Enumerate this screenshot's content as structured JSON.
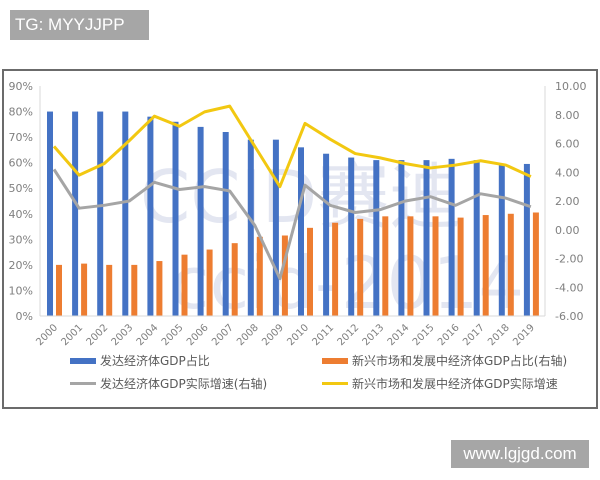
{
  "watermarks": {
    "top_left": "TG: MYYJJPP",
    "bottom_right": "www.lgjgd.com",
    "chart_background": "CCID赛迪 ccid-2014"
  },
  "colors": {
    "blue_bar": "#4472c4",
    "orange_bar": "#ed7d31",
    "gray_line": "#a5a5a5",
    "yellow_line": "#f2c811",
    "frame": "#6b6b6b",
    "axis_text": "#7f7f7f"
  },
  "legend": {
    "items": [
      {
        "label": "发达经济体GDP占比",
        "type": "bar",
        "color": "#4472c4"
      },
      {
        "label": "新兴市场和发展中经济体GDP占比(右轴)",
        "type": "bar",
        "color": "#ed7d31"
      },
      {
        "label": "发达经济体GDP实际增速(右轴)",
        "type": "line",
        "color": "#a5a5a5"
      },
      {
        "label": "新兴市场和发展中经济体GDP实际增速",
        "type": "line",
        "color": "#f2c811"
      }
    ]
  },
  "chart_data": {
    "type": "bar",
    "title": "",
    "xlabel": "",
    "ylabel": "",
    "categories": [
      "2000",
      "2001",
      "2002",
      "2003",
      "2004",
      "2005",
      "2006",
      "2007",
      "2008",
      "2009",
      "2010",
      "2011",
      "2012",
      "2013",
      "2014",
      "2015",
      "2016",
      "2017",
      "2018",
      "2019"
    ],
    "left_axis": {
      "ticks": [
        "0%",
        "10%",
        "20%",
        "30%",
        "40%",
        "50%",
        "60%",
        "70%",
        "80%",
        "90%"
      ],
      "ylim": [
        0,
        90
      ],
      "unit": "%"
    },
    "right_axis": {
      "ticks": [
        "-6.00",
        "-4.00",
        "-2.00",
        "0.00",
        "2.00",
        "4.00",
        "6.00",
        "8.00",
        "10.00"
      ],
      "ylim": [
        -6,
        10
      ]
    },
    "series": [
      {
        "name": "发达经济体GDP占比",
        "type": "bar",
        "axis": "left",
        "color": "#4472c4",
        "values": [
          80,
          80,
          80,
          80,
          78,
          76,
          74,
          72,
          69,
          69,
          66,
          63.5,
          62,
          61,
          61,
          61,
          61.5,
          61,
          59.5,
          59.5
        ]
      },
      {
        "name": "新兴市场和发展中经济体GDP占比(右轴)",
        "type": "bar",
        "axis": "left",
        "color": "#ed7d31",
        "values": [
          20,
          20.5,
          20,
          20,
          21.5,
          24,
          26,
          28.5,
          31,
          31.5,
          34.5,
          36.5,
          38,
          39,
          39,
          39,
          38.5,
          39.5,
          40,
          40.5
        ]
      },
      {
        "name": "发达经济体GDP实际增速(右轴)",
        "type": "line",
        "axis": "right",
        "color": "#a5a5a5",
        "values": [
          4.2,
          1.5,
          1.7,
          2.0,
          3.3,
          2.8,
          3.0,
          2.7,
          0.3,
          -3.4,
          3.1,
          1.7,
          1.2,
          1.4,
          2.0,
          2.3,
          1.7,
          2.5,
          2.2,
          1.6
        ]
      },
      {
        "name": "新兴市场和发展中经济体GDP实际增速",
        "type": "line",
        "axis": "right",
        "color": "#f2c811",
        "values": [
          5.8,
          3.8,
          4.6,
          6.2,
          7.9,
          7.2,
          8.2,
          8.6,
          5.8,
          3.0,
          7.4,
          6.3,
          5.3,
          5.0,
          4.6,
          4.3,
          4.5,
          4.8,
          4.5,
          3.7
        ]
      }
    ],
    "grid": false,
    "legend_position": "bottom"
  }
}
